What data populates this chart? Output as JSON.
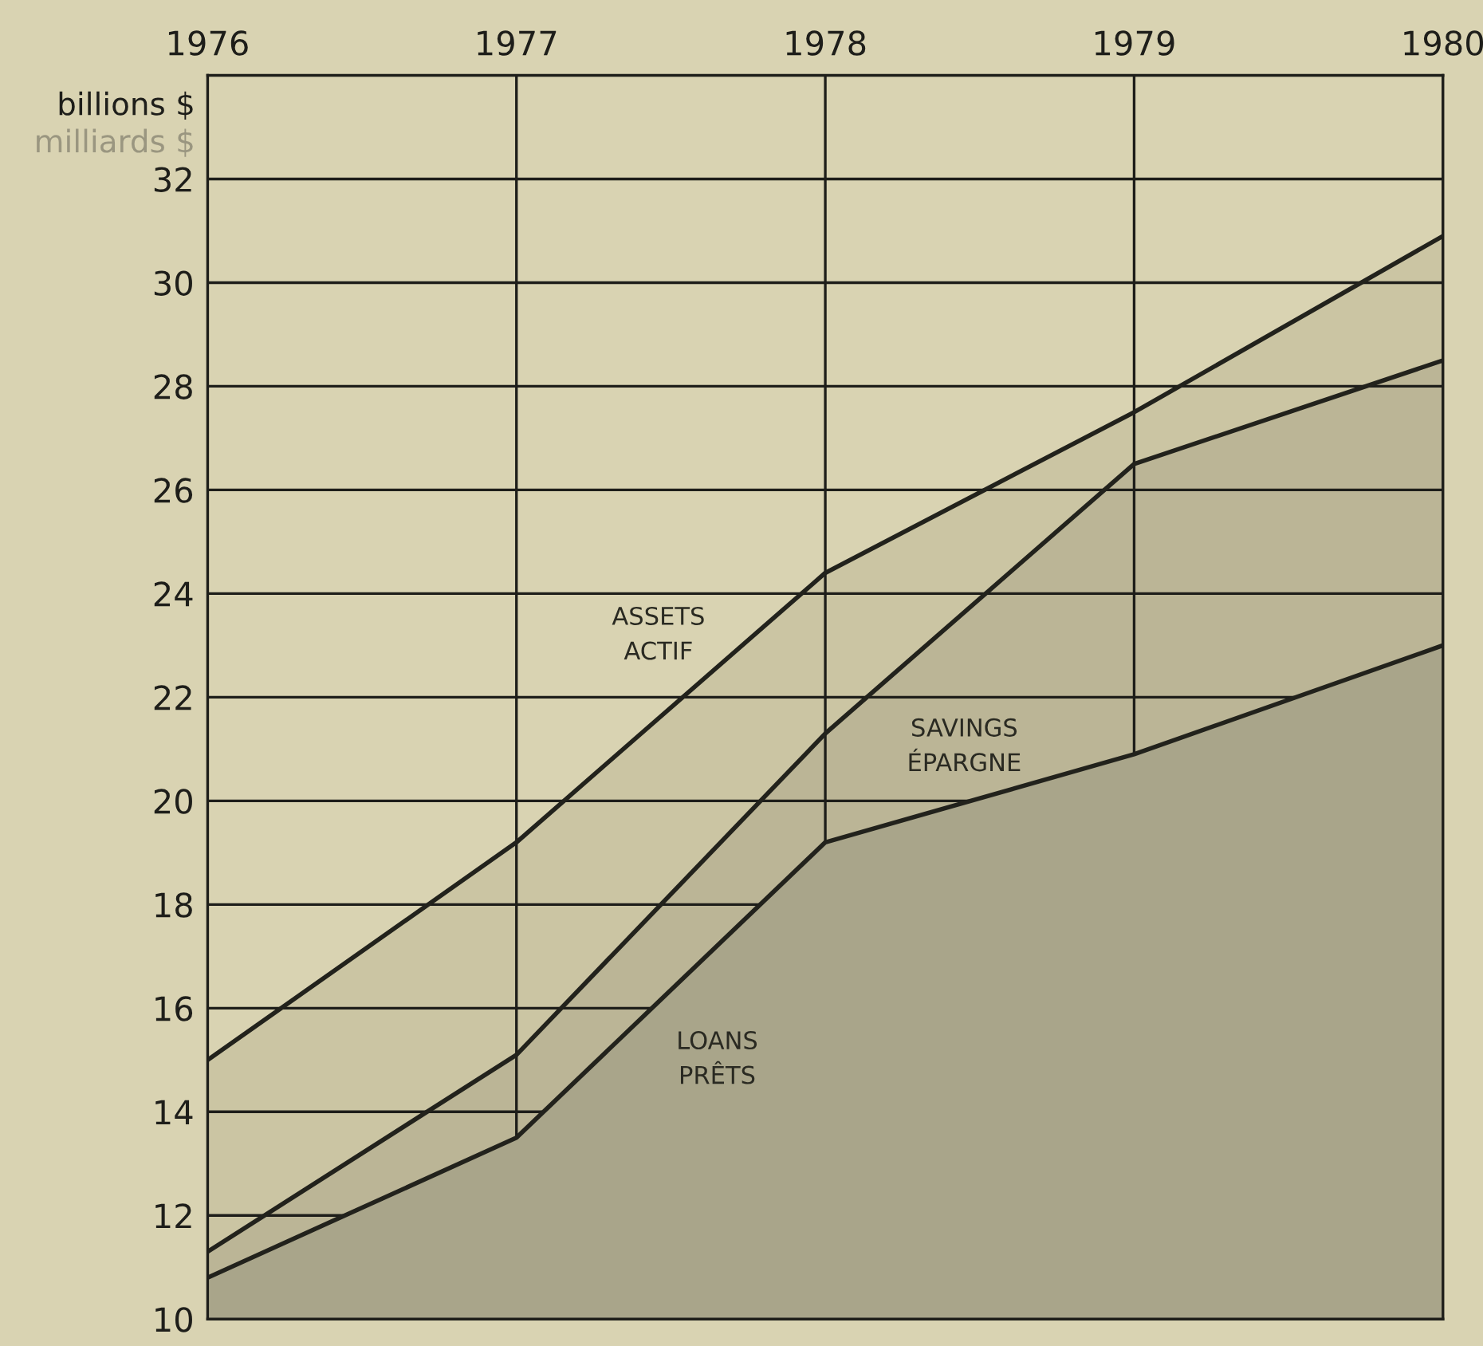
{
  "chart_data": {
    "type": "area",
    "ylabel": "billions $",
    "annotations": [
      "milliards $"
    ],
    "x": [
      1976,
      1977,
      1978,
      1979,
      1980
    ],
    "series": [
      {
        "name": "ASSETS\nACTIF",
        "color": "#cbc5a3",
        "values": [
          15.0,
          19.2,
          24.4,
          27.5,
          30.9
        ]
      },
      {
        "name": "SAVINGS\nÉPARGNE",
        "color": "#bbb596",
        "values": [
          11.3,
          15.1,
          21.3,
          26.5,
          28.5
        ]
      },
      {
        "name": "LOANS\nPRÊTS",
        "color": "#a9a58a",
        "values": [
          10.8,
          13.5,
          19.2,
          20.9,
          23.0
        ]
      }
    ],
    "xlim": [
      1976,
      1980
    ],
    "xticks": [
      1976,
      1977,
      1978,
      1979,
      1980
    ],
    "ylim": [
      10,
      34
    ],
    "yticks": [
      10,
      12,
      14,
      16,
      18,
      20,
      22,
      24,
      26,
      28,
      30,
      32
    ],
    "grid": true,
    "legend": false,
    "marker": "none",
    "line_style": "solid"
  }
}
